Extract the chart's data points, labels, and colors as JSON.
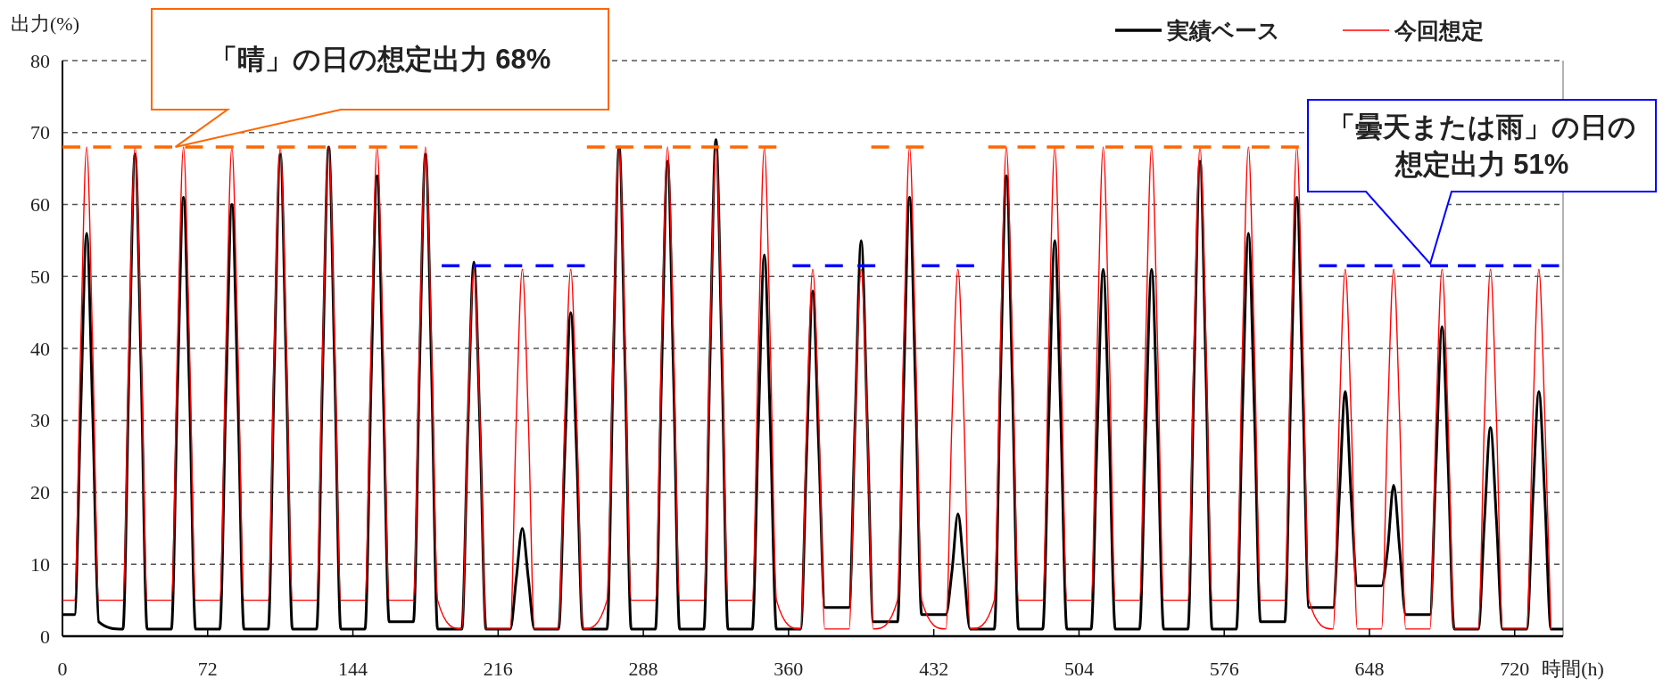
{
  "chart_data": {
    "type": "line",
    "xlabel": "時間(h)",
    "ylabel": "出力(%)",
    "xlim": [
      0,
      744
    ],
    "xticks": [
      0,
      72,
      144,
      216,
      288,
      360,
      432,
      504,
      576,
      648,
      720
    ],
    "ylim": [
      0,
      80
    ],
    "yticks": [
      0,
      10,
      20,
      30,
      40,
      50,
      60,
      70,
      80
    ],
    "grid": "y",
    "legend": "top right",
    "x": [
      0,
      6,
      9,
      12,
      15,
      18,
      30,
      33,
      36,
      39,
      42,
      54,
      57,
      60,
      63,
      66,
      78,
      81,
      84,
      87,
      90,
      102,
      105,
      108,
      111,
      114,
      126,
      129,
      132,
      135,
      138,
      150,
      153,
      156,
      159,
      162,
      174,
      177,
      180,
      183,
      186,
      198,
      201,
      204,
      207,
      210,
      222,
      225,
      228,
      231,
      234,
      246,
      249,
      252,
      255,
      258,
      270,
      273,
      276,
      279,
      282,
      294,
      297,
      300,
      303,
      306,
      318,
      321,
      324,
      327,
      330,
      342,
      345,
      348,
      351,
      354,
      366,
      369,
      372,
      375,
      378,
      390,
      393,
      396,
      399,
      402,
      414,
      417,
      420,
      423,
      426,
      438,
      441,
      444,
      447,
      450,
      462,
      465,
      468,
      471,
      474,
      486,
      489,
      492,
      495,
      498,
      510,
      513,
      516,
      519,
      522,
      534,
      537,
      540,
      543,
      546,
      558,
      561,
      564,
      567,
      570,
      582,
      585,
      588,
      591,
      594,
      606,
      609,
      612,
      615,
      618,
      630,
      633,
      636,
      639,
      642,
      654,
      657,
      660,
      663,
      666,
      678,
      681,
      684,
      687,
      690,
      702,
      705,
      708,
      711,
      714,
      726,
      729,
      732,
      735,
      738,
      744
    ],
    "series": [
      {
        "name": "実績ベース",
        "color": "#000000",
        "values": [
          3,
          3,
          31,
          56,
          31,
          2,
          1,
          37,
          67,
          37,
          1,
          1,
          34,
          61,
          34,
          1,
          1,
          33,
          60,
          33,
          1,
          1,
          37,
          67,
          37,
          1,
          1,
          37,
          68,
          37,
          1,
          1,
          35,
          64,
          35,
          2,
          2,
          37,
          67,
          37,
          1,
          1,
          29,
          52,
          29,
          1,
          1,
          8,
          15,
          8,
          1,
          1,
          25,
          45,
          25,
          1,
          1,
          37,
          68,
          37,
          1,
          1,
          36,
          66,
          36,
          1,
          1,
          38,
          69,
          38,
          1,
          1,
          29,
          53,
          29,
          1,
          1,
          26,
          48,
          26,
          4,
          4,
          30,
          55,
          30,
          2,
          2,
          34,
          61,
          34,
          3,
          3,
          9,
          17,
          9,
          1,
          1,
          35,
          64,
          35,
          1,
          1,
          30,
          55,
          30,
          1,
          1,
          28,
          51,
          28,
          1,
          1,
          28,
          51,
          28,
          1,
          1,
          36,
          66,
          36,
          1,
          1,
          31,
          56,
          31,
          2,
          2,
          34,
          61,
          34,
          4,
          4,
          19,
          34,
          19,
          7,
          7,
          12,
          21,
          12,
          3,
          3,
          24,
          43,
          24,
          1,
          1,
          16,
          29,
          16,
          1,
          1,
          19,
          34,
          19,
          1,
          1
        ]
      },
      {
        "name": "今回想定",
        "color": "#ff0000",
        "values": [
          5,
          5,
          40,
          68,
          40,
          5,
          5,
          40,
          68,
          40,
          5,
          5,
          40,
          68,
          40,
          5,
          5,
          40,
          68,
          40,
          5,
          5,
          40,
          68,
          40,
          5,
          5,
          40,
          68,
          40,
          5,
          5,
          40,
          68,
          40,
          5,
          5,
          40,
          68,
          40,
          5,
          1,
          30,
          51,
          30,
          1,
          1,
          30,
          51,
          30,
          1,
          1,
          30,
          51,
          30,
          1,
          5,
          40,
          68,
          40,
          5,
          5,
          40,
          68,
          40,
          5,
          5,
          40,
          68,
          40,
          5,
          5,
          40,
          68,
          40,
          5,
          1,
          30,
          51,
          30,
          1,
          1,
          30,
          51,
          30,
          1,
          5,
          40,
          68,
          40,
          5,
          1,
          30,
          51,
          30,
          1,
          5,
          40,
          68,
          40,
          5,
          5,
          40,
          68,
          40,
          5,
          5,
          40,
          68,
          40,
          5,
          5,
          40,
          68,
          40,
          5,
          5,
          40,
          68,
          40,
          5,
          5,
          40,
          68,
          40,
          5,
          5,
          40,
          68,
          40,
          5,
          1,
          30,
          51,
          30,
          1,
          1,
          30,
          51,
          30,
          1,
          1,
          30,
          51,
          30,
          1,
          1,
          30,
          51,
          30,
          1,
          1,
          30,
          51,
          30,
          1,
          null
        ]
      },
      {
        "color": "#ff6600",
        "line_style": "dashed",
        "x": [
          0,
          176
        ],
        "values": [
          68,
          68
        ]
      },
      {
        "color": "#ff6600",
        "line_style": "dashed",
        "x": [
          260,
          354
        ],
        "values": [
          68,
          68
        ]
      },
      {
        "color": "#ff6600",
        "line_style": "dashed",
        "x": [
          401,
          427
        ],
        "values": [
          68,
          68
        ]
      },
      {
        "color": "#ff6600",
        "line_style": "dashed",
        "x": [
          459,
          613
        ],
        "values": [
          68,
          68
        ]
      },
      {
        "color": "#0000ff",
        "line_style": "dashed",
        "x": [
          188,
          259
        ],
        "values": [
          51.5,
          51.5
        ]
      },
      {
        "color": "#0000ff",
        "line_style": "dashed",
        "x": [
          362,
          403
        ],
        "values": [
          51.5,
          51.5
        ]
      },
      {
        "color": "#0000ff",
        "line_style": "dashed",
        "x": [
          426,
          452
        ],
        "values": [
          51.5,
          51.5
        ]
      },
      {
        "color": "#0000ff",
        "line_style": "dashed",
        "x": [
          623,
          742
        ],
        "values": [
          51.5,
          51.5
        ]
      }
    ],
    "annotations": [
      {
        "text": "「晴」の日の想定出力 68%",
        "x": 56,
        "y": 68
      },
      "「曇天または雨」の日の想定出力 51%"
    ]
  }
}
